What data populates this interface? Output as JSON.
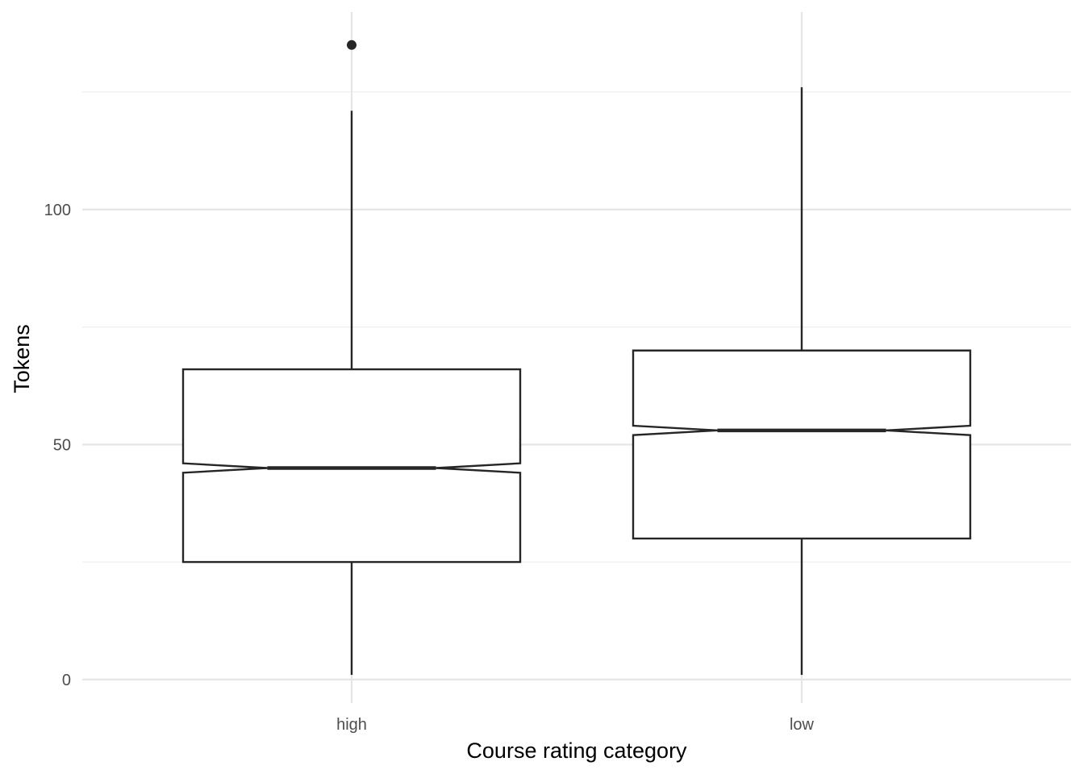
{
  "chart_data": {
    "type": "boxplot",
    "title": "",
    "xlabel": "Course rating category",
    "ylabel": "Tokens",
    "ylim": [
      -5,
      142
    ],
    "y_ticks": [
      0,
      50,
      100
    ],
    "y_tick_labels": [
      "0",
      "50",
      "100"
    ],
    "grid": true,
    "notched": true,
    "categories": [
      "high",
      "low"
    ],
    "boxes": [
      {
        "category": "high",
        "lower_whisker": 1,
        "q1": 25,
        "median": 45,
        "q3": 66,
        "upper_whisker": 121,
        "notch_low": 44,
        "notch_high": 46,
        "outliers": [
          135
        ]
      },
      {
        "category": "low",
        "lower_whisker": 1,
        "q1": 30,
        "median": 53,
        "q3": 70,
        "upper_whisker": 126,
        "notch_low": 52,
        "notch_high": 54,
        "outliers": []
      }
    ]
  }
}
